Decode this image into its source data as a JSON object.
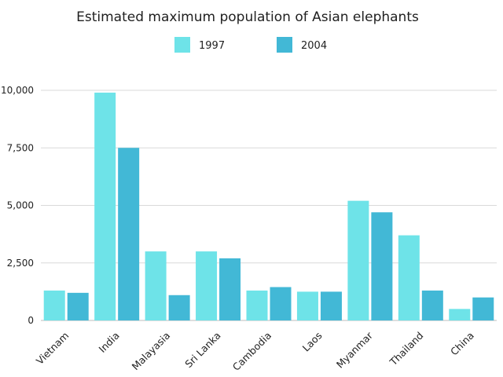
{
  "chart_data": {
    "type": "bar",
    "title": "Estimated maximum population of Asian elephants",
    "xlabel": "",
    "ylabel": "",
    "categories": [
      "Vietnam",
      "India",
      "Malayasia",
      "Sri Lanka",
      "Cambodia",
      "Laos",
      "Myanmar",
      "Thailand",
      "China"
    ],
    "series": [
      {
        "name": "1997",
        "color": "#6ee3e8",
        "values": [
          1300,
          9900,
          3000,
          3000,
          1300,
          1250,
          5200,
          3700,
          500
        ]
      },
      {
        "name": "2004",
        "color": "#42b8d6",
        "values": [
          1200,
          7500,
          1100,
          2700,
          1450,
          1250,
          4700,
          1300,
          1000
        ]
      }
    ],
    "ylim": [
      0,
      10000
    ],
    "yticks": [
      0,
      2500,
      5000,
      7500,
      10000
    ],
    "ytick_labels": [
      "0",
      "2,500",
      "5,000",
      "7,500",
      "10,000"
    ],
    "grid": true,
    "legend_position": "top-center"
  }
}
